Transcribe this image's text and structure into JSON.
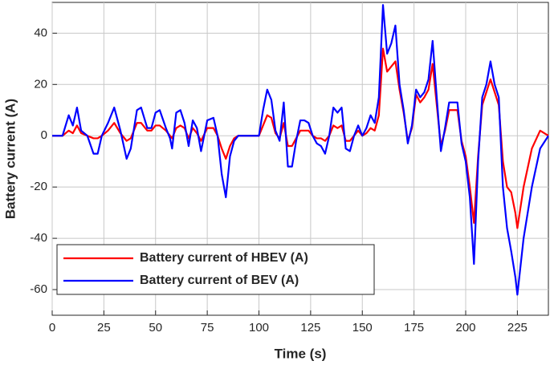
{
  "chart_data": {
    "type": "line",
    "xlabel": "Time (s)",
    "ylabel": "Battery current (A)",
    "x": [
      0,
      5,
      8,
      10,
      12,
      14,
      17,
      20,
      22,
      24,
      27,
      30,
      33,
      36,
      38,
      41,
      43,
      46,
      48,
      50,
      52,
      55,
      57,
      58,
      60,
      62,
      64,
      66,
      68,
      70,
      72,
      75,
      78,
      80,
      82,
      84,
      86,
      88,
      90,
      95,
      100,
      102,
      104,
      106,
      108,
      110,
      112,
      114,
      116,
      118,
      120,
      122,
      124,
      126,
      128,
      130,
      132,
      134,
      136,
      138,
      140,
      142,
      144,
      146,
      148,
      150,
      152,
      154,
      156,
      158,
      160,
      162,
      164,
      166,
      168,
      170,
      172,
      174,
      176,
      178,
      180,
      182,
      184,
      186,
      188,
      190,
      192,
      194,
      196,
      198,
      200,
      202,
      204,
      206,
      208,
      210,
      212,
      214,
      216,
      218,
      220,
      222,
      224,
      225,
      228,
      232,
      236,
      240
    ],
    "series": [
      {
        "name": "Battery current of HBEV (A)",
        "color": "#ff0000",
        "values": [
          0,
          0,
          2,
          1,
          4,
          1,
          0,
          -1,
          -1,
          0,
          2,
          5,
          1,
          -2,
          -1,
          5,
          5,
          2,
          2,
          4,
          4,
          2,
          0,
          -1,
          3,
          4,
          3,
          -1,
          3,
          1,
          -2,
          3,
          3,
          0,
          -5,
          -9,
          -4,
          -1,
          0,
          0,
          0,
          4,
          8,
          7,
          1,
          -1,
          5,
          -4,
          -4,
          -1,
          2,
          2,
          2,
          0,
          -1,
          -1,
          -2,
          0,
          4,
          3,
          4,
          -2,
          -2,
          0,
          2,
          0,
          1,
          3,
          2,
          8,
          34,
          25,
          27,
          29,
          18,
          9,
          -2,
          3,
          16,
          13,
          15,
          18,
          28,
          12,
          -4,
          2,
          10,
          10,
          10,
          -2,
          -8,
          -20,
          -34,
          -8,
          12,
          17,
          22,
          17,
          12,
          -10,
          -20,
          -22,
          -30,
          -36,
          -20,
          -5,
          2,
          0
        ]
      },
      {
        "name": "Battery current of BEV (A)",
        "color": "#0000ff",
        "values": [
          0,
          0,
          8,
          4,
          11,
          2,
          0,
          -7,
          -7,
          0,
          5,
          11,
          2,
          -9,
          -5,
          10,
          11,
          3,
          3,
          9,
          10,
          3,
          -1,
          -5,
          9,
          10,
          5,
          -4,
          6,
          3,
          -6,
          6,
          7,
          0,
          -15,
          -24,
          -8,
          -2,
          0,
          0,
          0,
          10,
          18,
          14,
          2,
          -2,
          13,
          -12,
          -12,
          -2,
          6,
          6,
          5,
          0,
          -3,
          -4,
          -7,
          0,
          11,
          9,
          11,
          -5,
          -6,
          0,
          4,
          0,
          3,
          8,
          5,
          15,
          51,
          32,
          36,
          43,
          20,
          10,
          -3,
          4,
          18,
          15,
          17,
          22,
          37,
          15,
          -6,
          3,
          13,
          13,
          13,
          -3,
          -10,
          -24,
          -50,
          -10,
          15,
          20,
          29,
          20,
          15,
          -20,
          -36,
          -45,
          -55,
          -62,
          -40,
          -20,
          -5,
          0
        ]
      }
    ],
    "xlim": [
      0,
      240
    ],
    "xticks": [
      0,
      25,
      50,
      75,
      100,
      125,
      150,
      175,
      200,
      225
    ],
    "ylim": [
      -70,
      52
    ],
    "yticks": [
      -60,
      -40,
      -20,
      0,
      20,
      40
    ],
    "grid": true,
    "legend": "lower-left"
  }
}
